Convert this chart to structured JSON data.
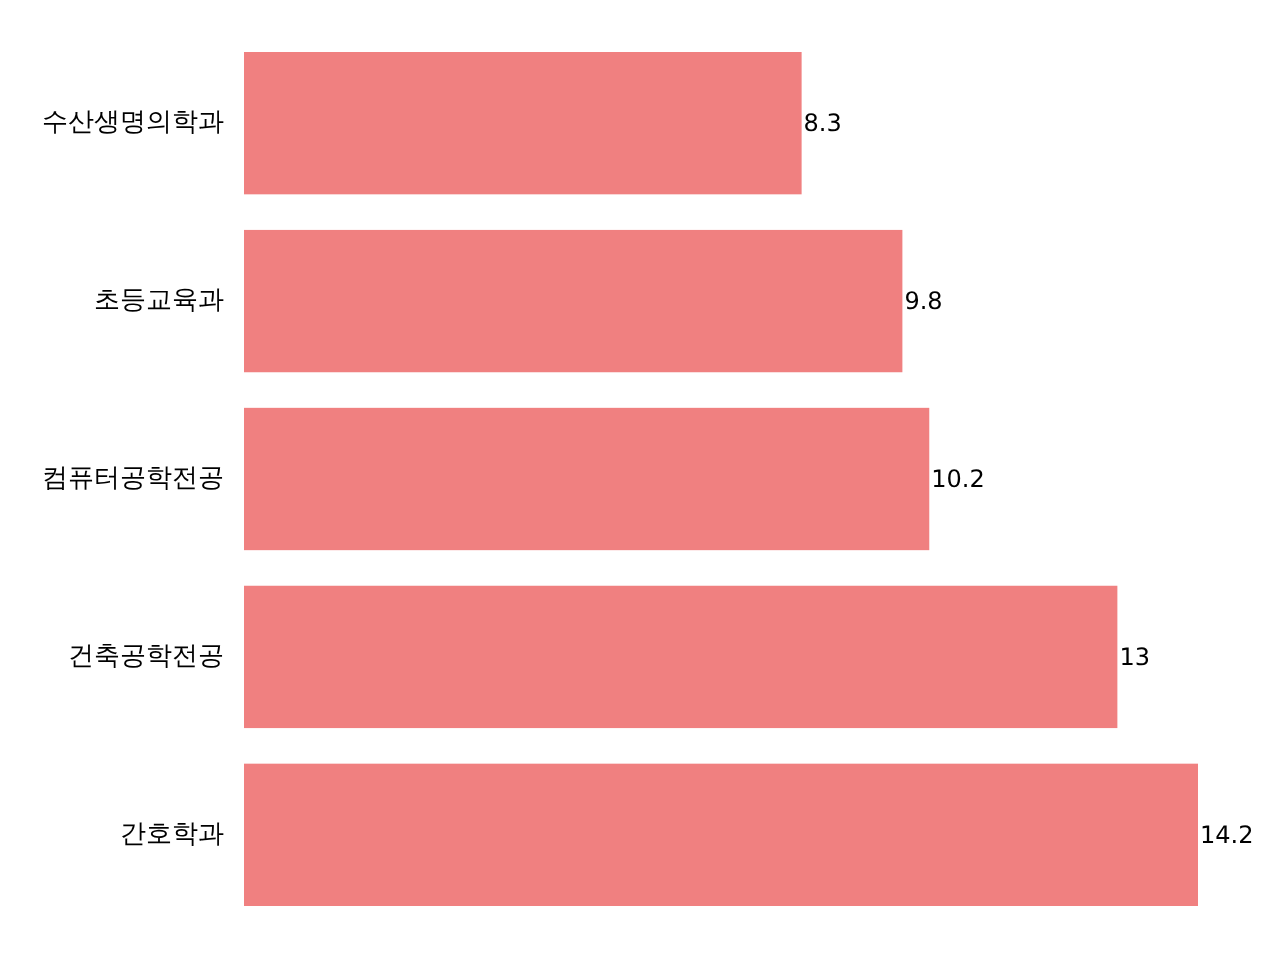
{
  "chart_data": {
    "type": "bar",
    "orientation": "horizontal",
    "categories": [
      "수산생명의학과",
      "초등교육과",
      "컴퓨터공학전공",
      "건축공학전공",
      "간호학과"
    ],
    "values": [
      8.3,
      9.8,
      10.2,
      13,
      14.2
    ],
    "color": "#f08080",
    "data_labels": true,
    "tick_labels": "y"
  }
}
